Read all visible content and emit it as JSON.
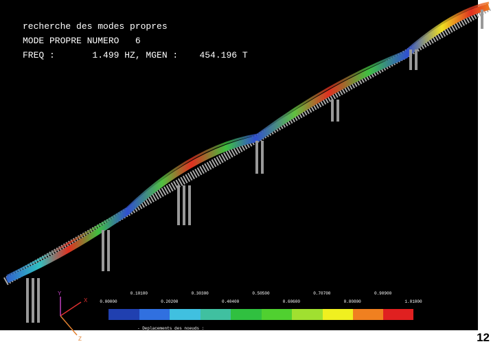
{
  "header": {
    "line1": "recherche des modes propres",
    "line2": "MODE PROPRE NUMERO   6",
    "line3": "FREQ :       1.499 HZ, MGEN :    454.196 T"
  },
  "colorbar": {
    "top_labels": [
      "0.10100",
      "0.30300",
      "0.50500",
      "0.70700",
      "0.90900"
    ],
    "bottom_labels": [
      "0.00000",
      "0.20200",
      "0.40400",
      "0.60600",
      "0.80800",
      "1.01000"
    ],
    "caption": "- Deplacements des noeuds :"
  },
  "axes": {
    "x": "X",
    "y": "Y",
    "z": "Z"
  },
  "figure_number": "12"
}
